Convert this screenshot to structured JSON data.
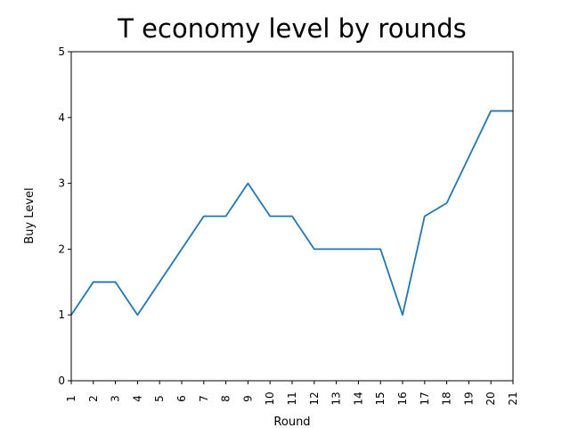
{
  "chart_data": {
    "type": "line",
    "title": "T economy level by rounds",
    "xlabel": "Round",
    "ylabel": "Buy Level",
    "xlim": [
      1,
      21
    ],
    "ylim": [
      0,
      5
    ],
    "x_ticks": [
      "1",
      "2",
      "3",
      "4",
      "5",
      "6",
      "7",
      "8",
      "9",
      "10",
      "11",
      "12",
      "13",
      "14",
      "15",
      "16",
      "17",
      "18",
      "19",
      "20",
      "21"
    ],
    "y_ticks": [
      "0",
      "1",
      "2",
      "3",
      "4",
      "5"
    ],
    "grid": false,
    "series": [
      {
        "color": "#1f77b4",
        "x": [
          1,
          2,
          3,
          4,
          5,
          6,
          7,
          8,
          9,
          10,
          11,
          12,
          13,
          14,
          15,
          16,
          17,
          18,
          19,
          20,
          21
        ],
        "y": [
          1.0,
          1.5,
          1.5,
          1.0,
          1.5,
          2.0,
          2.5,
          2.5,
          3.0,
          2.5,
          2.5,
          2.0,
          2.0,
          2.0,
          2.0,
          1.0,
          2.5,
          2.7,
          3.4,
          4.1,
          4.1
        ]
      }
    ]
  }
}
